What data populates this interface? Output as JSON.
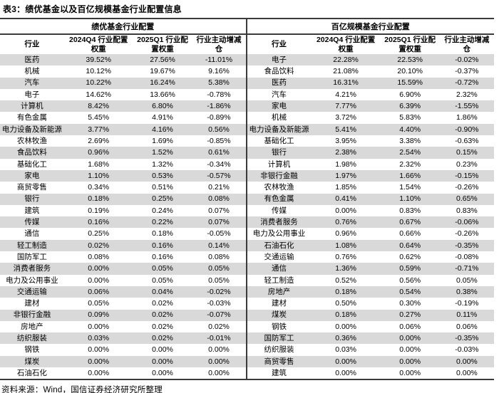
{
  "title": "表3：绩优基金以及百亿规模基金行业配置信息",
  "footer": "资料来源：Wind，国信证券经济研究所整理",
  "colors": {
    "stripe": "#d9d9d9",
    "border": "#3b3b3b",
    "text": "#000000",
    "background": "#ffffff"
  },
  "tables": [
    {
      "group_header": "绩优基金行业配置",
      "columns": [
        "行业",
        "2024Q4 行业配置权重",
        "2025Q1 行业配置权重",
        "行业主动增减仓"
      ],
      "rows": [
        [
          "医药",
          "39.52%",
          "27.56%",
          "-11.01%"
        ],
        [
          "机械",
          "10.12%",
          "19.67%",
          "9.16%"
        ],
        [
          "汽车",
          "10.22%",
          "16.24%",
          "5.38%"
        ],
        [
          "电子",
          "14.62%",
          "13.66%",
          "-0.78%"
        ],
        [
          "计算机",
          "8.42%",
          "6.80%",
          "-1.86%"
        ],
        [
          "有色金属",
          "5.45%",
          "4.91%",
          "-0.89%"
        ],
        [
          "电力设备及新能源",
          "3.77%",
          "4.16%",
          "0.56%"
        ],
        [
          "农林牧渔",
          "2.69%",
          "1.69%",
          "-0.85%"
        ],
        [
          "食品饮料",
          "0.96%",
          "1.52%",
          "0.61%"
        ],
        [
          "基础化工",
          "1.68%",
          "1.32%",
          "-0.34%"
        ],
        [
          "家电",
          "1.10%",
          "0.53%",
          "-0.57%"
        ],
        [
          "商贸零售",
          "0.34%",
          "0.51%",
          "0.21%"
        ],
        [
          "银行",
          "0.18%",
          "0.25%",
          "0.08%"
        ],
        [
          "建筑",
          "0.19%",
          "0.24%",
          "0.07%"
        ],
        [
          "传媒",
          "0.16%",
          "0.22%",
          "0.07%"
        ],
        [
          "通信",
          "0.25%",
          "0.18%",
          "-0.05%"
        ],
        [
          "轻工制造",
          "0.02%",
          "0.16%",
          "0.14%"
        ],
        [
          "国防军工",
          "0.08%",
          "0.16%",
          "0.08%"
        ],
        [
          "消费者服务",
          "0.00%",
          "0.05%",
          "0.05%"
        ],
        [
          "电力及公用事业",
          "0.00%",
          "0.05%",
          "0.05%"
        ],
        [
          "交通运输",
          "0.06%",
          "0.04%",
          "-0.02%"
        ],
        [
          "建材",
          "0.05%",
          "0.02%",
          "-0.03%"
        ],
        [
          "非银行金融",
          "0.09%",
          "0.02%",
          "-0.07%"
        ],
        [
          "房地产",
          "0.00%",
          "0.02%",
          "0.02%"
        ],
        [
          "纺织服装",
          "0.03%",
          "0.02%",
          "-0.01%"
        ],
        [
          "钢铁",
          "0.00%",
          "0.00%",
          "0.00%"
        ],
        [
          "煤炭",
          "0.00%",
          "0.00%",
          "0.00%"
        ],
        [
          "石油石化",
          "0.00%",
          "0.00%",
          "0.00%"
        ]
      ]
    },
    {
      "group_header": "百亿规模基金行业配置",
      "columns": [
        "行业",
        "2024Q4 行业配置权重",
        "2025Q1 行业配置权重",
        "行业主动增减仓"
      ],
      "rows": [
        [
          "电子",
          "22.28%",
          "22.53%",
          "-0.02%"
        ],
        [
          "食品饮料",
          "21.08%",
          "20.10%",
          "-0.37%"
        ],
        [
          "医药",
          "16.31%",
          "15.59%",
          "-0.72%"
        ],
        [
          "汽车",
          "4.21%",
          "6.90%",
          "2.32%"
        ],
        [
          "家电",
          "7.77%",
          "6.39%",
          "-1.55%"
        ],
        [
          "机械",
          "3.72%",
          "5.83%",
          "1.86%"
        ],
        [
          "电力设备及新能源",
          "5.41%",
          "4.40%",
          "-0.90%"
        ],
        [
          "基础化工",
          "3.95%",
          "3.38%",
          "-0.63%"
        ],
        [
          "银行",
          "2.38%",
          "2.54%",
          "0.15%"
        ],
        [
          "计算机",
          "1.98%",
          "2.32%",
          "0.23%"
        ],
        [
          "非银行金融",
          "1.97%",
          "1.66%",
          "-0.15%"
        ],
        [
          "农林牧渔",
          "1.85%",
          "1.54%",
          "-0.26%"
        ],
        [
          "有色金属",
          "0.41%",
          "1.10%",
          "0.65%"
        ],
        [
          "传媒",
          "0.00%",
          "0.83%",
          "0.83%"
        ],
        [
          "消费者服务",
          "0.76%",
          "0.67%",
          "-0.06%"
        ],
        [
          "电力及公用事业",
          "0.96%",
          "0.66%",
          "-0.26%"
        ],
        [
          "石油石化",
          "1.08%",
          "0.64%",
          "-0.35%"
        ],
        [
          "交通运输",
          "0.76%",
          "0.62%",
          "-0.08%"
        ],
        [
          "通信",
          "1.36%",
          "0.59%",
          "-0.71%"
        ],
        [
          "轻工制造",
          "0.52%",
          "0.56%",
          "0.05%"
        ],
        [
          "房地产",
          "0.18%",
          "0.54%",
          "0.38%"
        ],
        [
          "建材",
          "0.50%",
          "0.30%",
          "-0.19%"
        ],
        [
          "煤炭",
          "0.18%",
          "0.27%",
          "0.11%"
        ],
        [
          "钢铁",
          "0.00%",
          "0.06%",
          "0.06%"
        ],
        [
          "国防军工",
          "0.36%",
          "0.00%",
          "-0.35%"
        ],
        [
          "纺织服装",
          "0.03%",
          "0.00%",
          "-0.03%"
        ],
        [
          "商贸零售",
          "0.00%",
          "0.00%",
          "0.00%"
        ],
        [
          "建筑",
          "0.00%",
          "0.00%",
          "0.00%"
        ]
      ]
    }
  ]
}
